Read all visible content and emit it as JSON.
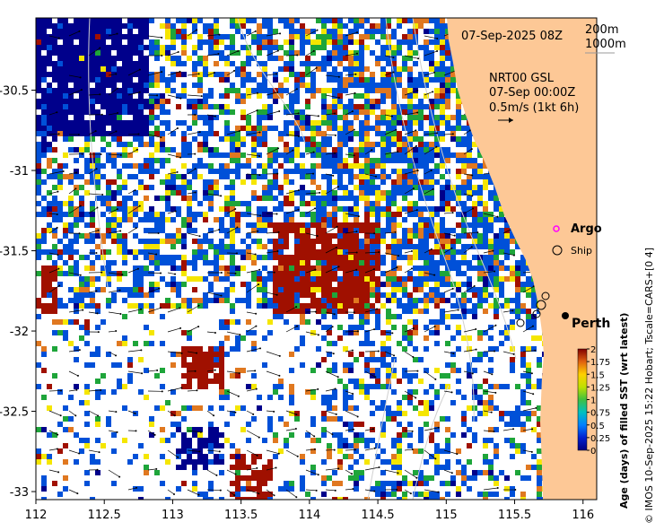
{
  "chart_data": {
    "type": "heatmap",
    "title": "07-Sep-2025 08Z",
    "xlabel": "",
    "ylabel": "",
    "xlim": [
      112,
      116.1
    ],
    "ylim": [
      -33.05,
      -30.05
    ],
    "xticks": [
      "112",
      "112.5",
      "113",
      "113.5",
      "114",
      "114.5",
      "115",
      "115.5",
      "116"
    ],
    "yticks": [
      "-30.5",
      "-31",
      "-31.5",
      "-32",
      "-32.5",
      "-33"
    ],
    "isobath_legend": [
      "200m",
      "1000m"
    ],
    "current_note": [
      "NRT00 GSL",
      "07-Sep 00:00Z",
      "0.5m/s (1kt 6h)"
    ],
    "markers": [
      {
        "label": "Argo",
        "type": "legend",
        "color": "#ff00ff"
      },
      {
        "label": "Ship",
        "type": "legend",
        "color": "#000000"
      },
      {
        "label": "Perth",
        "type": "city",
        "lon": 115.86,
        "lat": -31.95
      }
    ],
    "colorbar": {
      "label": "Age (days) of filled SST (wrt latest)",
      "range": [
        0,
        2
      ],
      "ticks": [
        "2",
        "1.75",
        "1.5",
        "1.25",
        "1",
        "0.75",
        "0.5",
        "0.25",
        "0"
      ]
    },
    "credit": "© IMOS 10-Sep-2025 15:22 Hobart; Tscale=CARS+[0 4]"
  },
  "colors": {
    "land": "#fdc896",
    "deep_blue": "#00008b",
    "blue": "#0050d8",
    "green": "#1ea53a",
    "yellow": "#f5e600",
    "orange": "#e07820",
    "dark_red": "#a01000"
  }
}
